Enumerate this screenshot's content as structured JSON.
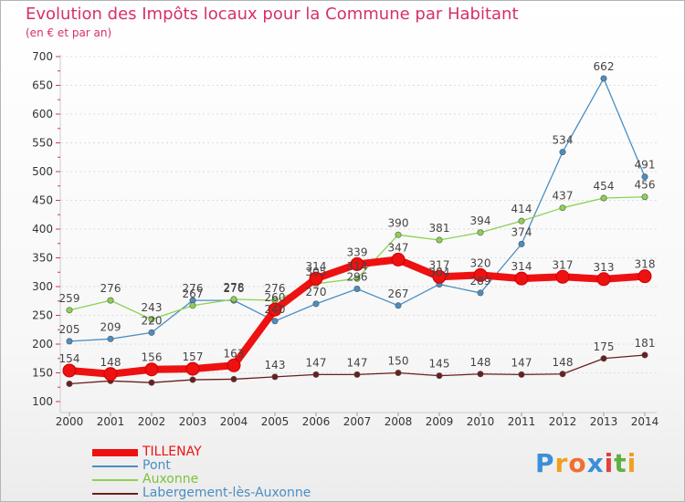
{
  "title": "Evolution des Impôts locaux pour la Commune par Habitant",
  "subtitle": "(en € et par an)",
  "logo": {
    "text": [
      "P",
      "r",
      "o",
      "x",
      "i",
      "t",
      "i"
    ],
    "colors": [
      "#3a8fd8",
      "#f0a020",
      "#f07030",
      "#3a8fd8",
      "#e04040",
      "#60b040",
      "#f0a020"
    ]
  },
  "chart_data": {
    "type": "line",
    "title": "Evolution des Impôts locaux pour la Commune par Habitant",
    "subtitle": "(en € et par an)",
    "xlabel": "",
    "ylabel": "",
    "ylim": [
      100,
      700
    ],
    "yticks": [
      100,
      150,
      200,
      250,
      300,
      350,
      400,
      450,
      500,
      550,
      600,
      650,
      700
    ],
    "grid": "horizontal-dashed",
    "categories": [
      "2000",
      "2001",
      "2002",
      "2003",
      "2004",
      "2005",
      "2006",
      "2007",
      "2008",
      "2009",
      "2010",
      "2011",
      "2012",
      "2013",
      "2014"
    ],
    "series": [
      {
        "name": "Labergement-lès-Auxonne",
        "color": "#6b1e1e",
        "values": [
          131,
          136,
          133,
          138,
          139,
          143,
          147,
          147,
          150,
          145,
          148,
          147,
          148,
          175,
          181
        ],
        "labels": [
          "",
          "",
          "",
          "",
          "",
          "143",
          "147",
          "147",
          "150",
          "145",
          "148",
          "147",
          "148",
          "175",
          "181"
        ]
      },
      {
        "name": "Pont",
        "color": "#4a8ec2",
        "values": [
          205,
          209,
          220,
          276,
          276,
          240,
          270,
          296,
          267,
          304,
          289,
          374,
          534,
          662,
          491
        ],
        "labels": [
          "205",
          "209",
          "220",
          "276",
          "276",
          "240",
          "270",
          "296",
          "267",
          "304",
          "289",
          "374",
          "534",
          "662",
          "491"
        ]
      },
      {
        "name": "Auxonne",
        "color": "#8cd152",
        "values": [
          259,
          276,
          243,
          267,
          278,
          276,
          305,
          314,
          390,
          381,
          394,
          414,
          437,
          454,
          456
        ],
        "labels": [
          "259",
          "276",
          "243",
          "267",
          "278",
          "276",
          "305",
          "314",
          "390",
          "381",
          "394",
          "414",
          "437",
          "454",
          "456"
        ]
      },
      {
        "name": "TILLENAY",
        "color": "#ee1111",
        "values": [
          154,
          148,
          156,
          157,
          163,
          260,
          314,
          339,
          347,
          317,
          320,
          314,
          317,
          313,
          318
        ],
        "labels": [
          "154",
          "148",
          "156",
          "157",
          "163",
          "260",
          "314",
          "339",
          "347",
          "317",
          "320",
          "314",
          "317",
          "313",
          "318"
        ]
      }
    ],
    "legend": [
      "TILLENAY",
      "Pont",
      "Auxonne",
      "Labergement-lès-Auxonne"
    ],
    "legend_position": "bottom-left"
  }
}
